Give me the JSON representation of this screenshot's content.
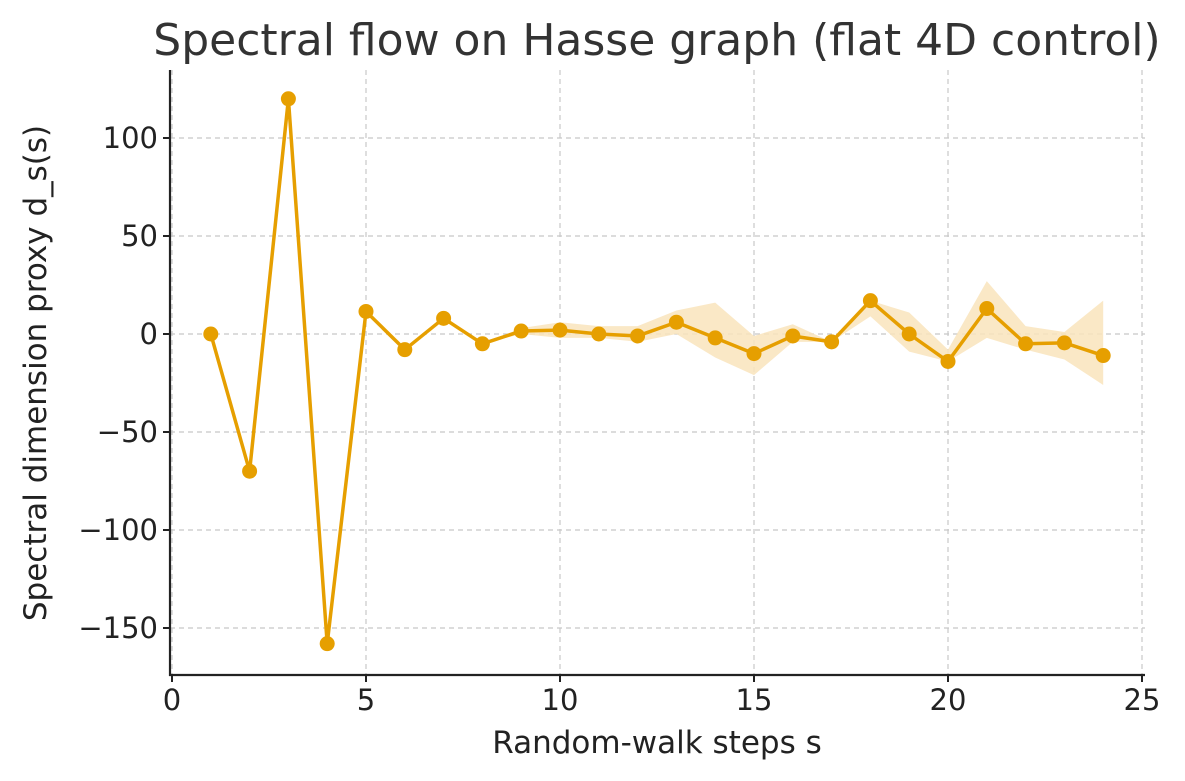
{
  "colors": {
    "line": "#E69F00",
    "band": "#F9E4BC",
    "grid": "#C8C8C8",
    "axis": "#222222",
    "text": "#222222",
    "title": "#333333"
  },
  "chart_data": {
    "type": "line",
    "title": "Spectral flow on Hasse graph (flat 4D control)",
    "xlabel": "Random-walk steps s",
    "ylabel": "Spectral dimension proxy d_s(s)",
    "xlim": [
      0,
      25
    ],
    "ylim": [
      -165,
      135
    ],
    "xticks": [
      0,
      5,
      10,
      15,
      20,
      25
    ],
    "xtick_labels": [
      "0",
      "5",
      "10",
      "15",
      "20",
      "25"
    ],
    "yticks": [
      100,
      50,
      0,
      -50,
      -100,
      -150
    ],
    "ytick_labels": [
      "100",
      "50",
      "0",
      "−50",
      "−100",
      "−150"
    ],
    "grid": true,
    "legend": "none",
    "series": [
      {
        "marker": "circle",
        "x": [
          1,
          2,
          3,
          4,
          5,
          6,
          7,
          8,
          9,
          10,
          11,
          12,
          13,
          14,
          15,
          16,
          17,
          18,
          19,
          20,
          21,
          22,
          23,
          24
        ],
        "y": [
          0,
          -70,
          120,
          -158,
          11.5,
          -8,
          8,
          -5,
          1.5,
          2,
          0,
          -1,
          6,
          -2,
          -10,
          -1,
          -4,
          17,
          0,
          -14,
          13,
          -5,
          -4.5,
          -11
        ],
        "band_lower": [
          0,
          -70,
          120,
          -158,
          11.5,
          -8,
          8,
          -5,
          0,
          -2,
          -2,
          -4,
          0,
          -12,
          -21,
          -4,
          -4,
          9,
          -9,
          -14,
          -2,
          -8,
          -13,
          -26
        ],
        "band_upper": [
          0,
          -70,
          120,
          -158,
          11.5,
          -8,
          8,
          -5,
          3,
          6,
          4,
          4,
          12,
          16,
          -1,
          5,
          -4,
          17,
          11,
          -8,
          27,
          4,
          1,
          17
        ]
      }
    ]
  }
}
